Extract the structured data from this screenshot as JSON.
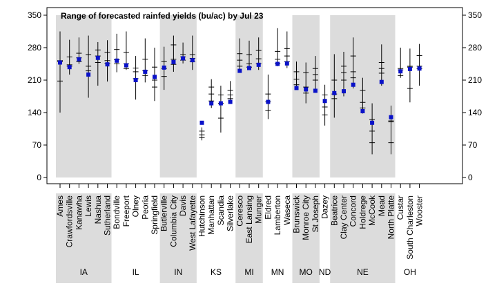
{
  "chart_data": {
    "type": "scatter",
    "title": "Range of forecasted rainfed yields (bu/ac) by Jul 23",
    "xlabel": "",
    "ylabel": "",
    "ylim": [
      0,
      350
    ],
    "yticks": [
      0,
      70,
      140,
      210,
      280,
      350
    ],
    "grid": false,
    "colors": {
      "point": "#0a12c8",
      "band": "#dcdcdc",
      "line": "#000000"
    },
    "sites": [
      {
        "name": "Ames",
        "state": "IA",
        "point": 248,
        "min": 140,
        "max": 315,
        "q1": 208,
        "median": 250,
        "q3": 252
      },
      {
        "name": "Crawfordsville",
        "state": "IA",
        "point": 238,
        "min": 222,
        "max": 297,
        "q1": 240,
        "median": 243,
        "q3": 260
      },
      {
        "name": "Kanawha",
        "state": "IA",
        "point": 255,
        "min": 245,
        "max": 302,
        "q1": 250,
        "median": 258,
        "q3": 268
      },
      {
        "name": "Lewis",
        "state": "IA",
        "point": 222,
        "min": 172,
        "max": 306,
        "q1": 230,
        "median": 240,
        "q3": 265
      },
      {
        "name": "Nashua",
        "state": "IA",
        "point": 258,
        "min": 198,
        "max": 292,
        "q1": 248,
        "median": 262,
        "q3": 275
      },
      {
        "name": "Sutherland",
        "state": "IA",
        "point": 244,
        "min": 207,
        "max": 296,
        "q1": 246,
        "median": 252,
        "q3": 270
      },
      {
        "name": "Bondville",
        "state": "IL",
        "point": 252,
        "min": 227,
        "max": 310,
        "q1": 245,
        "median": 254,
        "q3": 276
      },
      {
        "name": "Freeport",
        "state": "IL",
        "point": 242,
        "min": 232,
        "max": 315,
        "q1": 235,
        "median": 245,
        "q3": 270
      },
      {
        "name": "Olney",
        "state": "IL",
        "point": 210,
        "min": 168,
        "max": 262,
        "q1": 213,
        "median": 228,
        "q3": 236
      },
      {
        "name": "Peoria",
        "state": "IL",
        "point": 228,
        "min": 205,
        "max": 300,
        "q1": 220,
        "median": 230,
        "q3": 255
      },
      {
        "name": "Springfield",
        "state": "IL",
        "point": 217,
        "min": 165,
        "max": 280,
        "q1": 195,
        "median": 210,
        "q3": 238
      },
      {
        "name": "Butlerville",
        "state": "IN",
        "point": 237,
        "min": 189,
        "max": 282,
        "q1": 218,
        "median": 235,
        "q3": 250
      },
      {
        "name": "Columbia City",
        "state": "IN",
        "point": 249,
        "min": 228,
        "max": 306,
        "q1": 244,
        "median": 255,
        "q3": 286
      },
      {
        "name": "Davis",
        "state": "IN",
        "point": 257,
        "min": 246,
        "max": 291,
        "q1": 253,
        "median": 260,
        "q3": 265
      },
      {
        "name": "West Lafayette",
        "state": "IN",
        "point": 253,
        "min": 232,
        "max": 306,
        "q1": 250,
        "median": 257,
        "q3": 265
      },
      {
        "name": "Hutchinson",
        "state": "KS",
        "point": 118,
        "min": 80,
        "max": 108,
        "q1": 86,
        "median": 92,
        "q3": 100
      },
      {
        "name": "Manhattan",
        "state": "KS",
        "point": 160,
        "min": 150,
        "max": 212,
        "q1": 165,
        "median": 180,
        "q3": 195
      },
      {
        "name": "Scandia",
        "state": "KS",
        "point": 160,
        "min": 97,
        "max": 198,
        "q1": 128,
        "median": 160,
        "q3": 178
      },
      {
        "name": "Silverlake",
        "state": "KS",
        "point": 163,
        "min": 160,
        "max": 208,
        "q1": 170,
        "median": 178,
        "q3": 188
      },
      {
        "name": "Ceresco",
        "state": "MI",
        "point": 230,
        "min": 228,
        "max": 300,
        "q1": 240,
        "median": 253,
        "q3": 267
      },
      {
        "name": "East Lansing",
        "state": "MI",
        "point": 236,
        "min": 232,
        "max": 295,
        "q1": 238,
        "median": 245,
        "q3": 265
      },
      {
        "name": "Munger",
        "state": "MI",
        "point": 243,
        "min": 232,
        "max": 302,
        "q1": 245,
        "median": 256,
        "q3": 274
      },
      {
        "name": "Eldred",
        "state": "MN",
        "point": 163,
        "min": 126,
        "max": 222,
        "q1": 145,
        "median": 163,
        "q3": 180
      },
      {
        "name": "Lamberton",
        "state": "MN",
        "point": 245,
        "min": 240,
        "max": 322,
        "q1": 246,
        "median": 255,
        "q3": 272
      },
      {
        "name": "Waseca",
        "state": "MN",
        "point": 246,
        "min": 236,
        "max": 315,
        "q1": 250,
        "median": 262,
        "q3": 278
      },
      {
        "name": "Brunswick",
        "state": "MO",
        "point": 193,
        "min": 195,
        "max": 250,
        "q1": 200,
        "median": 212,
        "q3": 228
      },
      {
        "name": "Monroe City",
        "state": "MO",
        "point": 190,
        "min": 160,
        "max": 248,
        "q1": 182,
        "median": 195,
        "q3": 226
      },
      {
        "name": "St Joseph",
        "state": "MO",
        "point": 187,
        "min": 187,
        "max": 262,
        "q1": 210,
        "median": 222,
        "q3": 235
      },
      {
        "name": "Dazey",
        "state": "ND",
        "point": 165,
        "min": 112,
        "max": 200,
        "q1": 135,
        "median": 152,
        "q3": 178
      },
      {
        "name": "Beatrice",
        "state": "NE",
        "point": 182,
        "min": 129,
        "max": 266,
        "q1": 170,
        "median": 180,
        "q3": 210
      },
      {
        "name": "Clay Center",
        "state": "NE",
        "point": 186,
        "min": 175,
        "max": 271,
        "q1": 210,
        "median": 226,
        "q3": 240
      },
      {
        "name": "Concord",
        "state": "NE",
        "point": 200,
        "min": 192,
        "max": 302,
        "q1": 215,
        "median": 228,
        "q3": 262
      },
      {
        "name": "Holdrege",
        "state": "NE",
        "point": 143,
        "min": 138,
        "max": 215,
        "q1": 150,
        "median": 162,
        "q3": 188
      },
      {
        "name": "McCook",
        "state": "NE",
        "point": 118,
        "min": 50,
        "max": 160,
        "q1": 75,
        "median": 100,
        "q3": 125
      },
      {
        "name": "Mead",
        "state": "NE",
        "point": 206,
        "min": 198,
        "max": 287,
        "q1": 225,
        "median": 235,
        "q3": 248
      },
      {
        "name": "North Platte",
        "state": "NE",
        "point": 130,
        "min": 50,
        "max": 155,
        "q1": 75,
        "median": 120,
        "q3": 122
      },
      {
        "name": "Custar",
        "state": "OH",
        "point": 229,
        "min": 215,
        "max": 280,
        "q1": 220,
        "median": 232,
        "q3": 235
      },
      {
        "name": "South Charleston",
        "state": "OH",
        "point": 234,
        "min": 162,
        "max": 278,
        "q1": 192,
        "median": 238,
        "q3": 240
      },
      {
        "name": "Wooster",
        "state": "OH",
        "point": 235,
        "min": 198,
        "max": 288,
        "q1": 235,
        "median": 240,
        "q3": 263
      }
    ],
    "states": [
      "IA",
      "IL",
      "IN",
      "KS",
      "MI",
      "MN",
      "MO",
      "ND",
      "NE",
      "OH"
    ],
    "shaded_states": [
      "IA",
      "IN",
      "MI",
      "MO",
      "NE"
    ]
  }
}
